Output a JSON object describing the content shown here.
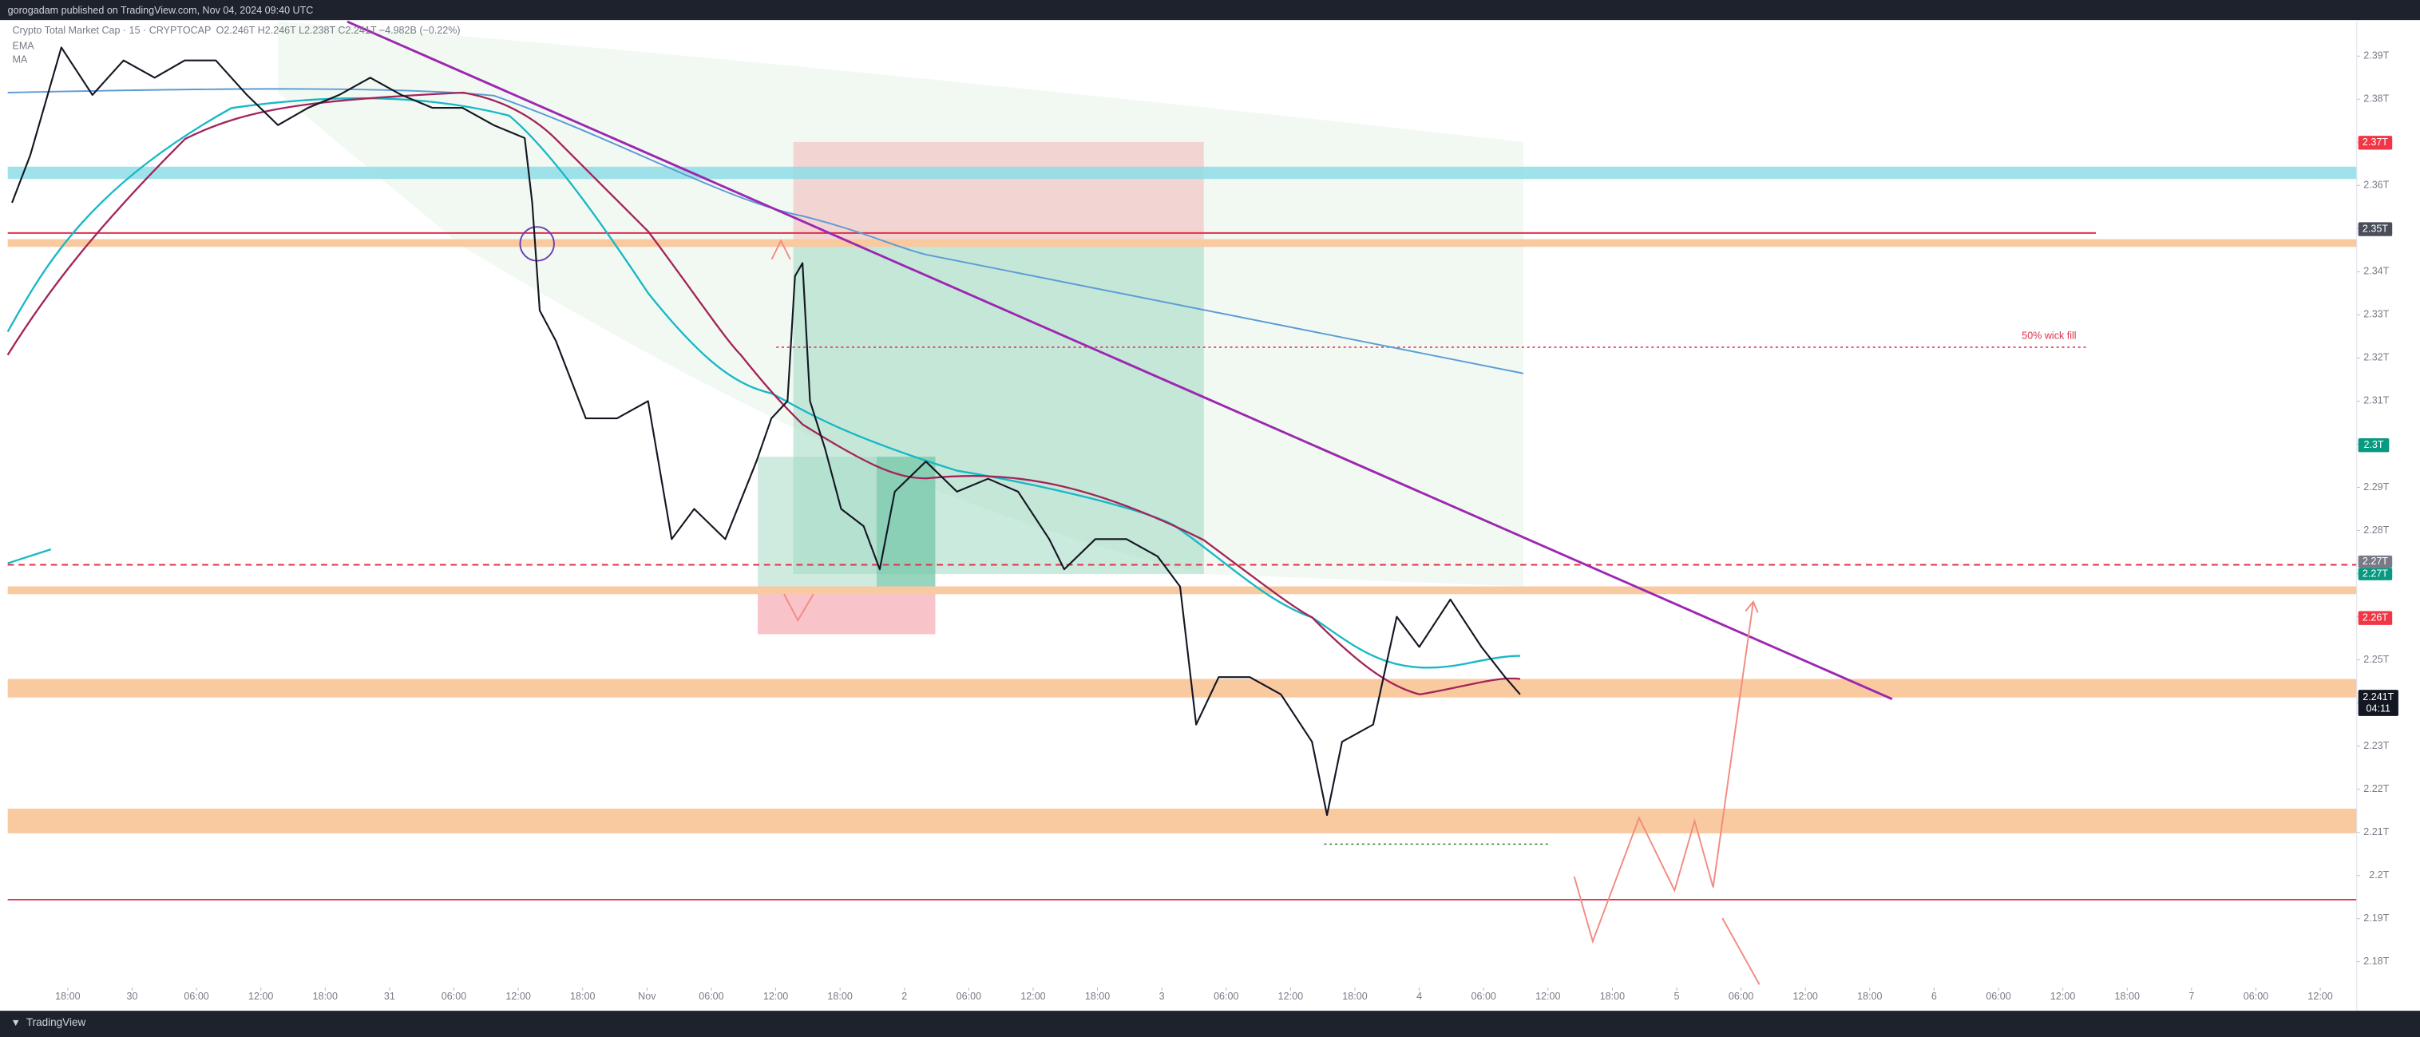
{
  "header": {
    "text": "gorogadam published on TradingView.com, Nov 04, 2024 09:40 UTC"
  },
  "footer": {
    "text": "TradingView"
  },
  "chart_data": {
    "type": "line",
    "title": "Crypto Total Market Cap · 15 · CRYPTOCAP",
    "ohlc": "O2.246T H2.246T L2.238T C2.241T −4.982B (−0.22%)",
    "indicators": [
      "EMA",
      "MA"
    ],
    "annotations": [
      "50% wick fill"
    ],
    "price_labels": [
      "2.37T",
      "2.35T",
      "2.3T",
      "2.27T",
      "2.27T",
      "2.26T",
      "2.241T",
      "04:11"
    ],
    "x": [
      12.8,
      14.5,
      17.4,
      20.3,
      23.2,
      26.1,
      28.9,
      31.8,
      34.7,
      37.6,
      40.4,
      43.3,
      46.2,
      49.1,
      52.0,
      54.8,
      57.7,
      60.6,
      61.3,
      62.0,
      63.5,
      66.3,
      69.2,
      72.1,
      74.3,
      76.4,
      79.3,
      82.2,
      83.6,
      85.1,
      85.8,
      86.5,
      87.2,
      88.6,
      90.1,
      92.2,
      93.7,
      95.1,
      98.0,
      100.9,
      103.8,
      106.6,
      109.5,
      110.9,
      113.8,
      116.7,
      119.6,
      121.7,
      123.2,
      125.3,
      128.2,
      131.1,
      134.0,
      135.4,
      136.8,
      139.7,
      141.9,
      144.0,
      146.9,
      149.8,
      152.0,
      153.4
    ],
    "values": [
      2.356,
      2.367,
      2.392,
      2.381,
      2.389,
      2.385,
      2.389,
      2.389,
      2.381,
      2.374,
      2.378,
      2.381,
      2.385,
      2.381,
      2.378,
      2.378,
      2.374,
      2.371,
      2.356,
      2.331,
      2.324,
      2.306,
      2.306,
      2.31,
      2.278,
      2.285,
      2.278,
      2.296,
      2.306,
      2.31,
      2.339,
      2.342,
      2.31,
      2.299,
      2.285,
      2.281,
      2.271,
      2.289,
      2.296,
      2.289,
      2.292,
      2.289,
      2.278,
      2.271,
      2.278,
      2.278,
      2.274,
      2.267,
      2.235,
      2.246,
      2.246,
      2.242,
      2.231,
      2.214,
      2.231,
      2.235,
      2.26,
      2.253,
      2.264,
      2.253,
      2.246,
      2.242
    ],
    "color": "#131722",
    "xlim": [
      12.4,
      231.4
    ],
    "ylim": [
      2.174,
      2.398
    ],
    "xticks": [
      {
        "value": 18,
        "label": "18:00"
      },
      {
        "value": 24,
        "label": "30"
      },
      {
        "value": 30,
        "label": "06:00"
      },
      {
        "value": 36,
        "label": "12:00"
      },
      {
        "value": 42,
        "label": "18:00"
      },
      {
        "value": 48,
        "label": "31"
      },
      {
        "value": 54,
        "label": "06:00"
      },
      {
        "value": 60,
        "label": "12:00"
      },
      {
        "value": 66,
        "label": "18:00"
      },
      {
        "value": 72,
        "label": "Nov"
      },
      {
        "value": 78,
        "label": "06:00"
      },
      {
        "value": 84,
        "label": "12:00"
      },
      {
        "value": 90,
        "label": "18:00"
      },
      {
        "value": 96,
        "label": "2"
      },
      {
        "value": 102,
        "label": "06:00"
      },
      {
        "value": 108,
        "label": "12:00"
      },
      {
        "value": 114,
        "label": "18:00"
      },
      {
        "value": 120,
        "label": "3"
      },
      {
        "value": 126,
        "label": "06:00"
      },
      {
        "value": 132,
        "label": "12:00"
      },
      {
        "value": 138,
        "label": "18:00"
      },
      {
        "value": 144,
        "label": "4"
      },
      {
        "value": 150,
        "label": "06:00"
      },
      {
        "value": 156,
        "label": "12:00"
      },
      {
        "value": 162,
        "label": "18:00"
      },
      {
        "value": 168,
        "label": "5"
      },
      {
        "value": 174,
        "label": "06:00"
      },
      {
        "value": 180,
        "label": "12:00"
      },
      {
        "value": 186,
        "label": "18:00"
      },
      {
        "value": 192,
        "label": "6"
      },
      {
        "value": 198,
        "label": "06:00"
      },
      {
        "value": 204,
        "label": "12:00"
      },
      {
        "value": 210,
        "label": "18:00"
      },
      {
        "value": 216,
        "label": "7"
      },
      {
        "value": 222,
        "label": "06:00"
      },
      {
        "value": 228,
        "label": "12:00"
      }
    ],
    "yticks": [
      {
        "value": 2.18,
        "label": "2.18T"
      },
      {
        "value": 2.19,
        "label": "2.19T"
      },
      {
        "value": 2.2,
        "label": "2.2T"
      },
      {
        "value": 2.21,
        "label": "2.21T"
      },
      {
        "value": 2.22,
        "label": "2.22T"
      },
      {
        "value": 2.23,
        "label": "2.23T"
      },
      {
        "value": 2.24,
        "label": "2.24T"
      },
      {
        "value": 2.25,
        "label": "2.25T"
      },
      {
        "value": 2.26,
        "label": "2.26T"
      },
      {
        "value": 2.27,
        "label": "2.27T"
      },
      {
        "value": 2.28,
        "label": "2.28T"
      },
      {
        "value": 2.29,
        "label": "2.29T"
      },
      {
        "value": 2.3,
        "label": "2.3T"
      },
      {
        "value": 2.31,
        "label": "2.31T"
      },
      {
        "value": 2.32,
        "label": "2.32T"
      },
      {
        "value": 2.33,
        "label": "2.33T"
      },
      {
        "value": 2.34,
        "label": "2.34T"
      },
      {
        "value": 2.35,
        "label": "2.35T"
      },
      {
        "value": 2.36,
        "label": "2.36T"
      },
      {
        "value": 2.37,
        "label": "2.37T"
      },
      {
        "value": 2.38,
        "label": "2.38T"
      },
      {
        "value": 2.39,
        "label": "2.39T"
      }
    ],
    "grid": false
  }
}
